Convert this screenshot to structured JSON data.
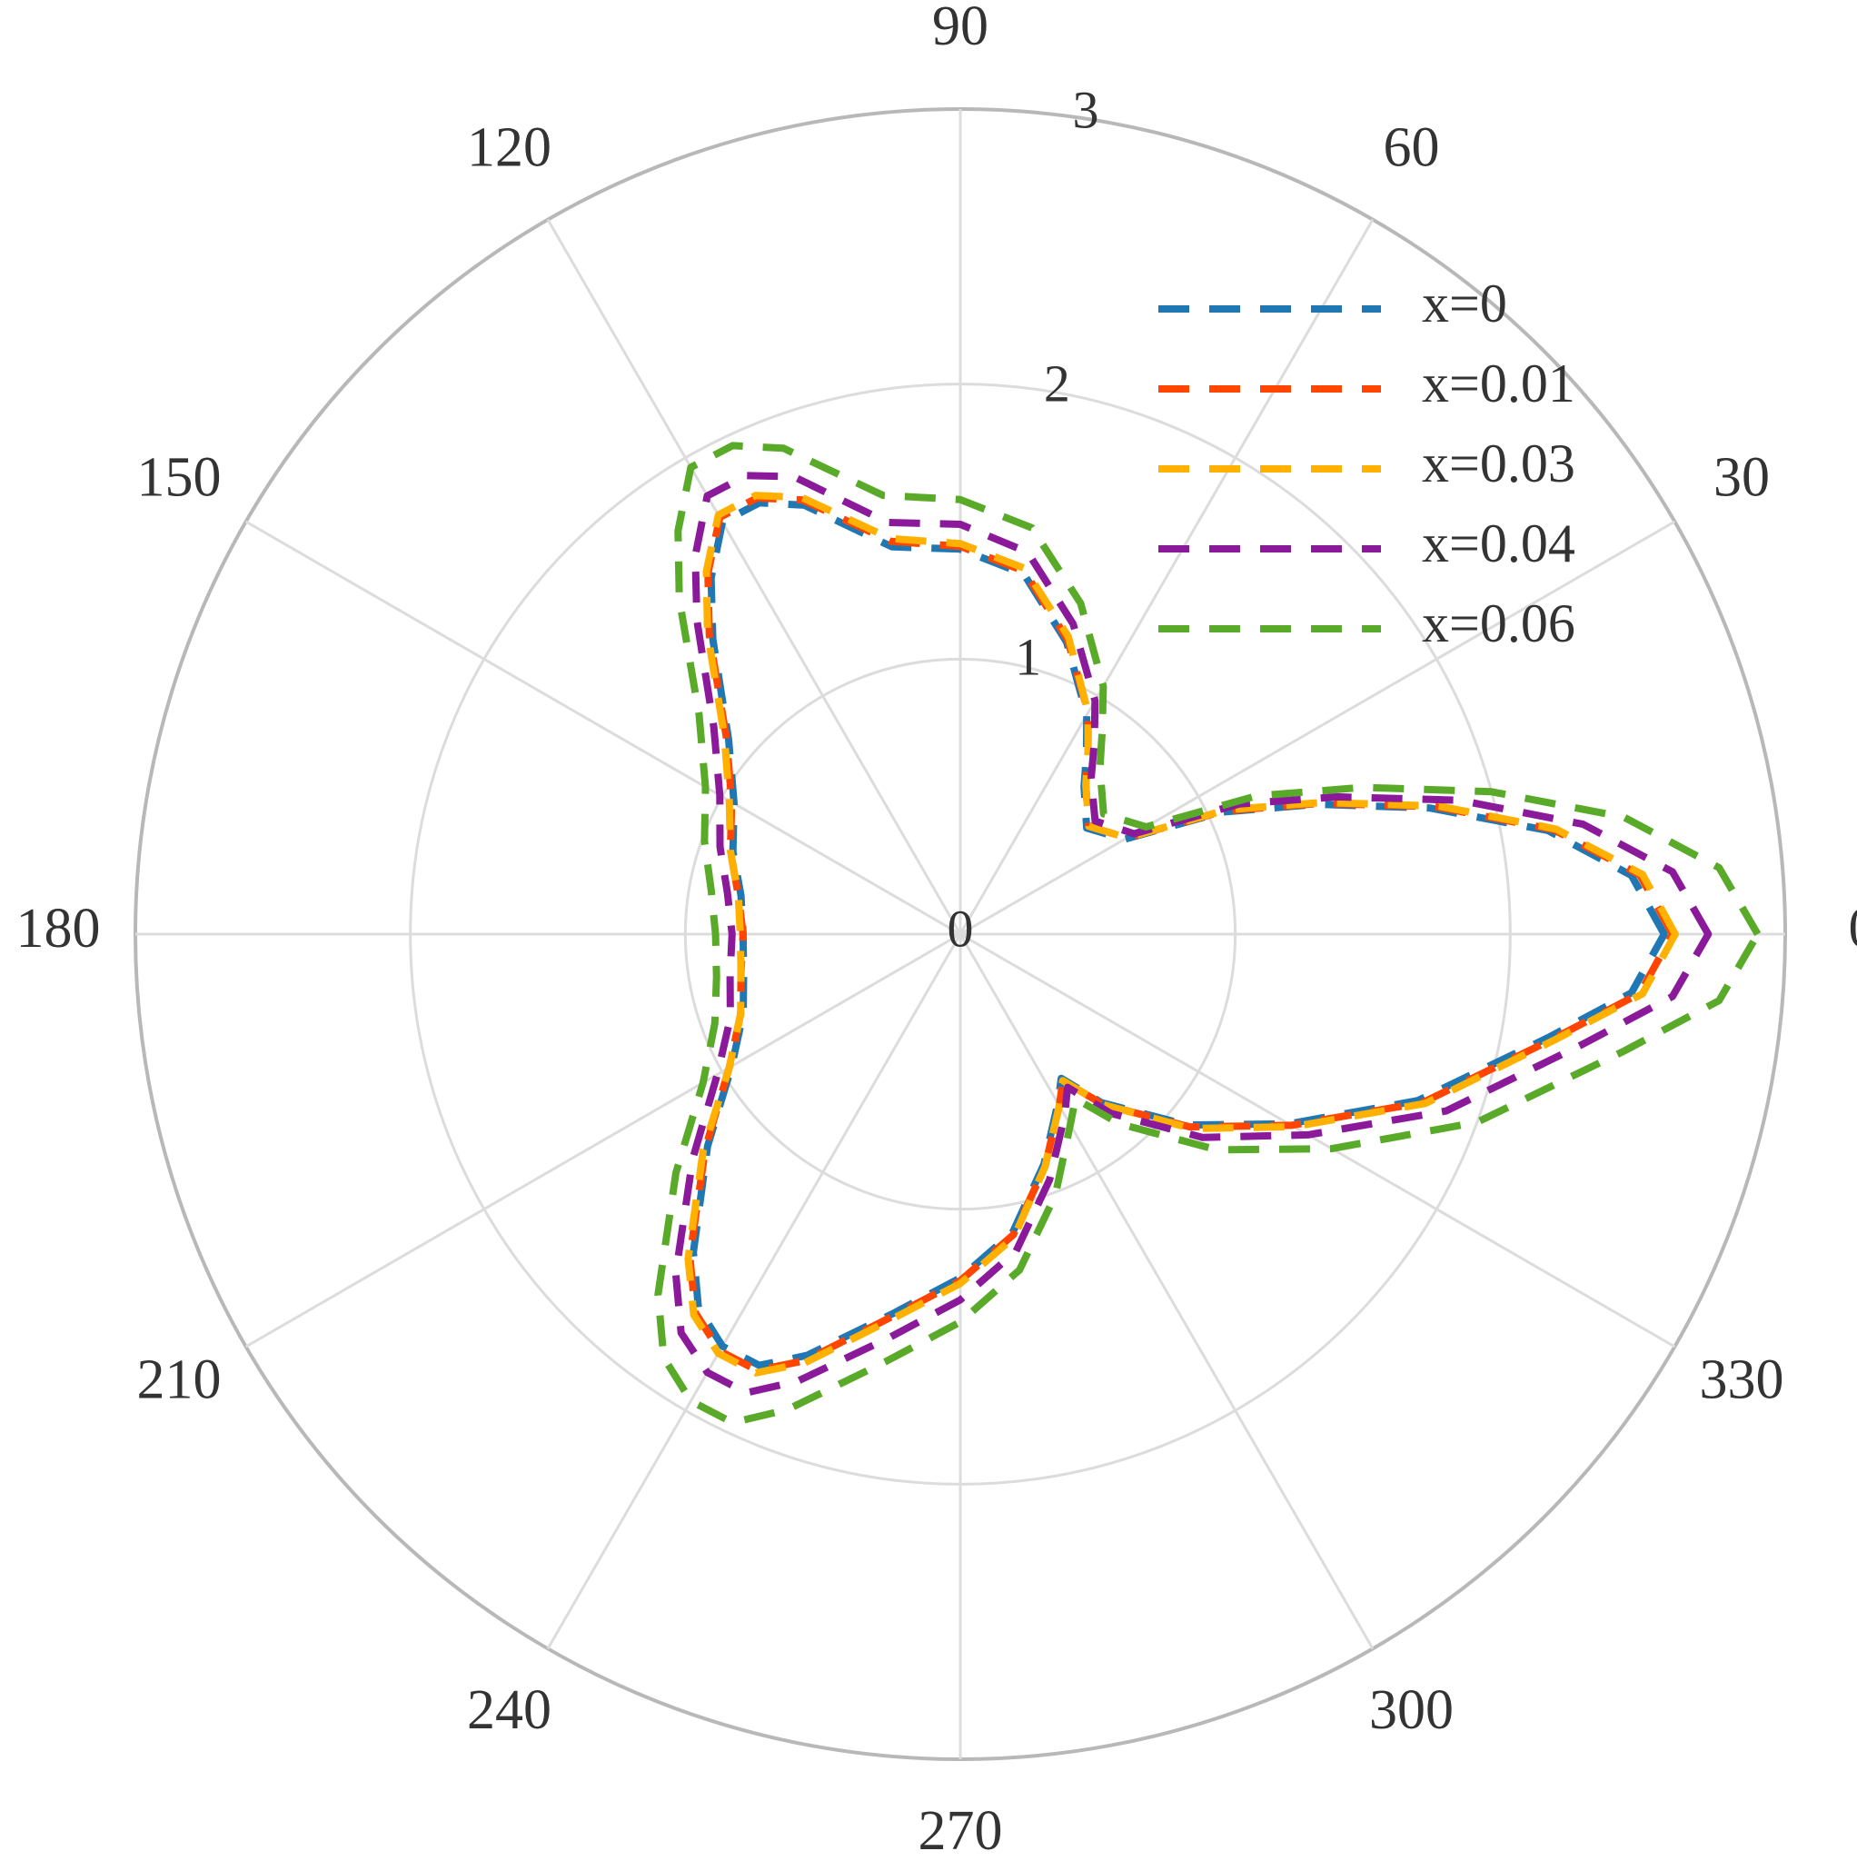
{
  "chart_data": {
    "type": "polar-line",
    "theta_unit": "degrees",
    "rlim": [
      0,
      3
    ],
    "radial_ticks": [
      "0",
      "1",
      "2",
      "3"
    ],
    "angle_ticks": [
      "0",
      "30",
      "60",
      "90",
      "120",
      "150",
      "180",
      "210",
      "240",
      "270",
      "300",
      "330"
    ],
    "grid": true,
    "legend_position": "top-right",
    "line_style": "dashed",
    "series": [
      {
        "name": "x=0",
        "color": "#1f77b4",
        "theta": [
          0,
          5,
          10,
          15,
          20,
          25,
          30,
          40,
          50,
          55,
          60,
          70,
          80,
          90,
          100,
          110,
          115,
          120,
          125,
          130,
          140,
          150,
          160,
          170,
          180,
          190,
          200,
          210,
          220,
          230,
          235,
          240,
          245,
          250,
          260,
          270,
          280,
          290,
          300,
          305,
          310,
          320,
          330,
          340,
          350,
          355
        ],
        "r": [
          2.56,
          2.45,
          2.17,
          1.77,
          1.38,
          1.05,
          0.69,
          0.6,
          0.7,
          0.8,
          0.92,
          1.13,
          1.33,
          1.4,
          1.43,
          1.66,
          1.73,
          1.73,
          1.58,
          1.4,
          1.1,
          0.95,
          0.88,
          0.81,
          0.79,
          0.8,
          0.84,
          0.96,
          1.2,
          1.51,
          1.66,
          1.73,
          1.73,
          1.63,
          1.4,
          1.25,
          1.1,
          0.89,
          0.71,
          0.64,
          0.8,
          1.08,
          1.38,
          1.77,
          2.17,
          2.45
        ]
      },
      {
        "name": "x=0.01",
        "color": "#ff4500",
        "theta": [
          0,
          5,
          10,
          15,
          20,
          25,
          30,
          40,
          50,
          55,
          60,
          70,
          80,
          90,
          100,
          110,
          115,
          120,
          125,
          130,
          140,
          150,
          160,
          170,
          180,
          190,
          200,
          210,
          220,
          230,
          235,
          240,
          245,
          250,
          260,
          270,
          280,
          290,
          300,
          305,
          310,
          320,
          330,
          340,
          350,
          355
        ],
        "r": [
          2.59,
          2.48,
          2.19,
          1.79,
          1.39,
          1.06,
          0.7,
          0.61,
          0.71,
          0.81,
          0.93,
          1.14,
          1.34,
          1.41,
          1.45,
          1.68,
          1.75,
          1.75,
          1.6,
          1.42,
          1.11,
          0.96,
          0.89,
          0.82,
          0.79,
          0.81,
          0.85,
          0.97,
          1.21,
          1.53,
          1.68,
          1.75,
          1.75,
          1.65,
          1.41,
          1.26,
          1.11,
          0.9,
          0.72,
          0.65,
          0.81,
          1.09,
          1.39,
          1.79,
          2.19,
          2.48
        ]
      },
      {
        "name": "x=0.03",
        "color": "#ffb000",
        "theta": [
          0,
          5,
          10,
          15,
          20,
          25,
          30,
          40,
          50,
          55,
          60,
          70,
          80,
          90,
          100,
          110,
          115,
          120,
          125,
          130,
          140,
          150,
          160,
          170,
          180,
          190,
          200,
          210,
          220,
          230,
          235,
          240,
          245,
          250,
          260,
          270,
          280,
          290,
          300,
          305,
          310,
          320,
          330,
          340,
          350,
          355
        ],
        "r": [
          2.6,
          2.49,
          2.2,
          1.8,
          1.4,
          1.07,
          0.7,
          0.61,
          0.71,
          0.81,
          0.93,
          1.15,
          1.35,
          1.42,
          1.46,
          1.69,
          1.76,
          1.76,
          1.61,
          1.43,
          1.12,
          0.97,
          0.89,
          0.82,
          0.8,
          0.81,
          0.85,
          0.97,
          1.22,
          1.54,
          1.69,
          1.76,
          1.76,
          1.66,
          1.42,
          1.27,
          1.12,
          0.9,
          0.72,
          0.65,
          0.81,
          1.1,
          1.4,
          1.8,
          2.2,
          2.49
        ]
      },
      {
        "name": "x=0.04",
        "color": "#8b1a9b",
        "theta": [
          0,
          5,
          10,
          15,
          20,
          25,
          30,
          40,
          50,
          55,
          60,
          70,
          80,
          90,
          100,
          110,
          115,
          120,
          125,
          130,
          140,
          150,
          160,
          170,
          180,
          190,
          200,
          210,
          220,
          230,
          235,
          240,
          245,
          250,
          260,
          270,
          280,
          290,
          300,
          305,
          310,
          320,
          330,
          340,
          350,
          355
        ],
        "r": [
          2.72,
          2.6,
          2.3,
          1.88,
          1.46,
          1.12,
          0.73,
          0.64,
          0.74,
          0.85,
          0.98,
          1.2,
          1.41,
          1.49,
          1.52,
          1.77,
          1.84,
          1.84,
          1.68,
          1.49,
          1.17,
          1.01,
          0.93,
          0.86,
          0.83,
          0.85,
          0.89,
          1.02,
          1.27,
          1.61,
          1.77,
          1.84,
          1.84,
          1.73,
          1.49,
          1.33,
          1.17,
          0.95,
          0.76,
          0.68,
          0.85,
          1.15,
          1.46,
          1.88,
          2.3,
          2.6
        ]
      },
      {
        "name": "x=0.06",
        "color": "#5aaa2a",
        "theta": [
          0,
          5,
          10,
          15,
          20,
          25,
          30,
          40,
          50,
          55,
          60,
          70,
          80,
          90,
          100,
          110,
          115,
          120,
          125,
          130,
          140,
          150,
          160,
          170,
          180,
          190,
          200,
          210,
          220,
          230,
          235,
          240,
          245,
          250,
          260,
          270,
          280,
          290,
          300,
          305,
          310,
          320,
          330,
          340,
          350,
          355
        ],
        "r": [
          2.9,
          2.77,
          2.45,
          2.0,
          1.56,
          1.19,
          0.78,
          0.68,
          0.79,
          0.9,
          1.04,
          1.28,
          1.5,
          1.58,
          1.62,
          1.88,
          1.96,
          1.96,
          1.79,
          1.59,
          1.24,
          1.07,
          0.99,
          0.92,
          0.89,
          0.9,
          0.95,
          1.08,
          1.35,
          1.71,
          1.88,
          1.96,
          1.96,
          1.84,
          1.58,
          1.41,
          1.24,
          1.01,
          0.8,
          0.73,
          0.9,
          1.22,
          1.56,
          2.0,
          2.45,
          2.77
        ]
      }
    ]
  }
}
